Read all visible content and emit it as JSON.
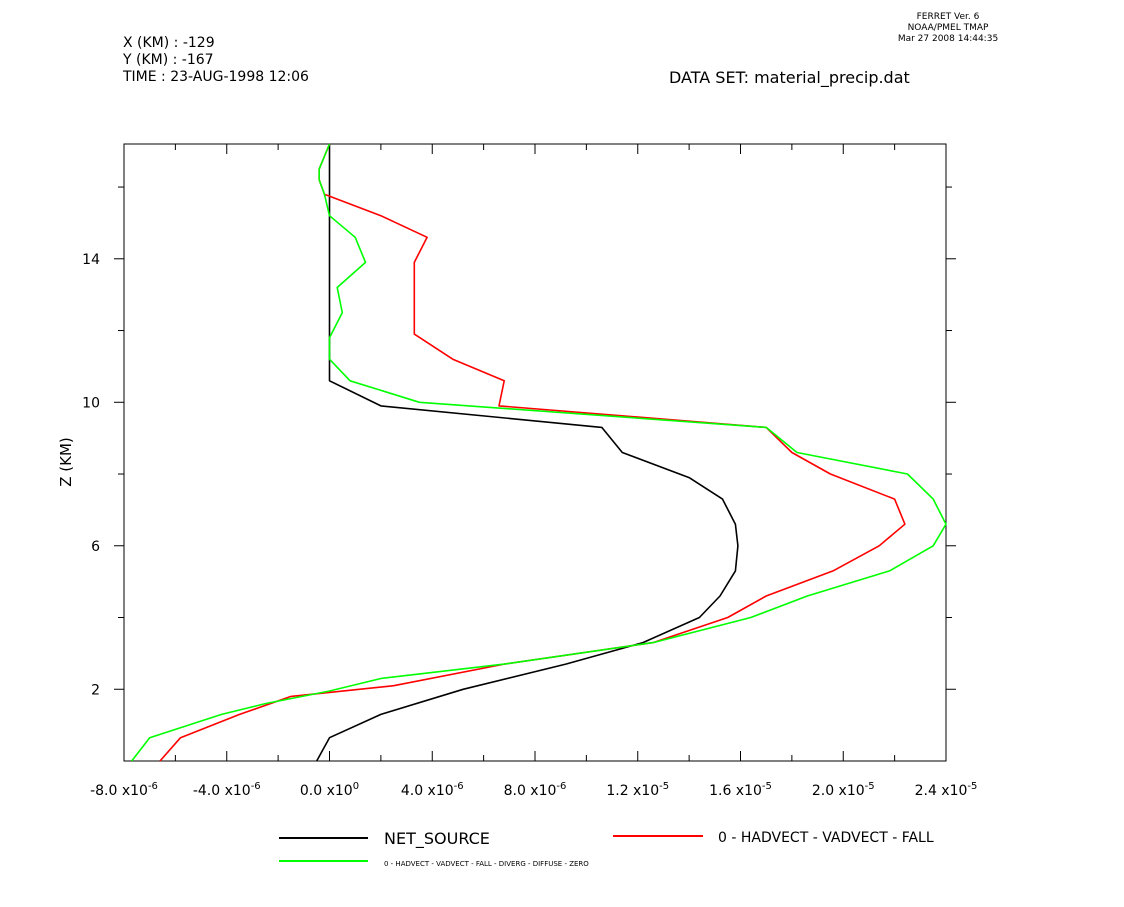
{
  "header": {
    "x_line": "X (KM) : -129",
    "y_line": "Y (KM) : -167",
    "time_line": "TIME : 23-AUG-1998 12:06",
    "dataset_line": "DATA SET: material_precip.dat",
    "ferret_version": "FERRET Ver. 6",
    "ferret_org": "NOAA/PMEL TMAP",
    "ferret_date": "Mar 27 2008 14:44:35"
  },
  "chart_data": {
    "type": "line",
    "title": "",
    "xlabel": "",
    "ylabel": "Z (KM)",
    "xlim": [
      -8e-06,
      2.4e-05
    ],
    "ylim": [
      0.0,
      17.2
    ],
    "x_ticks": [
      {
        "value": -8e-06,
        "mant": "-8.0",
        "exp": "-6"
      },
      {
        "value": -4e-06,
        "mant": "-4.0",
        "exp": "-6"
      },
      {
        "value": 0.0,
        "mant": "0.0",
        "exp": "0"
      },
      {
        "value": 4e-06,
        "mant": "4.0",
        "exp": "-6"
      },
      {
        "value": 8e-06,
        "mant": "8.0",
        "exp": "-6"
      },
      {
        "value": 1.2e-05,
        "mant": "1.2",
        "exp": "-5"
      },
      {
        "value": 1.6e-05,
        "mant": "1.6",
        "exp": "-5"
      },
      {
        "value": 2e-05,
        "mant": "2.0",
        "exp": "-5"
      },
      {
        "value": 2.4e-05,
        "mant": "2.4",
        "exp": "-5"
      }
    ],
    "x_minor_ticks": [
      -6e-06,
      -2e-06,
      2e-06,
      6e-06,
      1e-05,
      1.4e-05,
      1.8e-05,
      2.2e-05
    ],
    "y_ticks": [
      2,
      6,
      10,
      14
    ],
    "y_minor_ticks": [
      4,
      8,
      12,
      16
    ],
    "grid": false,
    "legend_position": "bottom",
    "series": [
      {
        "name": "NET_SOURCE",
        "color": "#000000",
        "points": [
          [
            0.0,
            17.2
          ],
          [
            0.0,
            16.5
          ],
          [
            0.0,
            15.8
          ],
          [
            0.0,
            15.1
          ],
          [
            0.0,
            14.4
          ],
          [
            0.0,
            13.8
          ],
          [
            0.0,
            13.1
          ],
          [
            0.0,
            12.4
          ],
          [
            0.0,
            11.8
          ],
          [
            0.0,
            11.2
          ],
          [
            0.0,
            10.6
          ],
          [
            2e-06,
            9.9
          ],
          [
            1.06e-05,
            9.3
          ],
          [
            1.14e-05,
            8.6
          ],
          [
            1.4e-05,
            7.9
          ],
          [
            1.53e-05,
            7.3
          ],
          [
            1.58e-05,
            6.6
          ],
          [
            1.59e-05,
            6.0
          ],
          [
            1.58e-05,
            5.3
          ],
          [
            1.52e-05,
            4.6
          ],
          [
            1.44e-05,
            4.0
          ],
          [
            1.22e-05,
            3.3
          ],
          [
            9.2e-06,
            2.7
          ],
          [
            5.2e-06,
            2.0
          ],
          [
            2e-06,
            1.3
          ],
          [
            0.0,
            0.65
          ],
          [
            -5e-07,
            0.0
          ]
        ]
      },
      {
        "name": "0 - HADVECT - VADVECT - FALL",
        "color": "#ff0000",
        "points": [
          [
            0.0,
            17.2
          ],
          [
            -4e-07,
            16.5
          ],
          [
            -4e-07,
            16.2
          ],
          [
            -2e-07,
            15.8
          ],
          [
            2e-06,
            15.2
          ],
          [
            3.8e-06,
            14.6
          ],
          [
            3.3e-06,
            13.9
          ],
          [
            3.3e-06,
            12.4
          ],
          [
            3.3e-06,
            11.9
          ],
          [
            4.8e-06,
            11.2
          ],
          [
            6.8e-06,
            10.6
          ],
          [
            6.6e-06,
            9.9
          ],
          [
            1.7e-05,
            9.3
          ],
          [
            1.8e-05,
            8.6
          ],
          [
            1.95e-05,
            8.0
          ],
          [
            2.2e-05,
            7.3
          ],
          [
            2.24e-05,
            6.6
          ],
          [
            2.14e-05,
            6.0
          ],
          [
            1.96e-05,
            5.3
          ],
          [
            1.7e-05,
            4.6
          ],
          [
            1.55e-05,
            4.0
          ],
          [
            1.26e-05,
            3.3
          ],
          [
            6.8e-06,
            2.7
          ],
          [
            2.5e-06,
            2.1
          ],
          [
            -1.5e-06,
            1.8
          ],
          [
            -3.5e-06,
            1.3
          ],
          [
            -5.8e-06,
            0.65
          ],
          [
            -6.6e-06,
            0.0
          ]
        ]
      },
      {
        "name": "0 - HADVECT - VADVECT - FALL - DIVERG - DIFFUSE - ZERO",
        "color": "#00ff00",
        "points": [
          [
            0.0,
            17.2
          ],
          [
            -4e-07,
            16.5
          ],
          [
            -4e-07,
            16.2
          ],
          [
            -2e-07,
            15.8
          ],
          [
            0.0,
            15.2
          ],
          [
            1e-06,
            14.6
          ],
          [
            1.4e-06,
            13.9
          ],
          [
            3e-07,
            13.2
          ],
          [
            5e-07,
            12.5
          ],
          [
            0.0,
            11.8
          ],
          [
            0.0,
            11.2
          ],
          [
            8e-07,
            10.6
          ],
          [
            3.5e-06,
            10.0
          ],
          [
            1.7e-05,
            9.3
          ],
          [
            1.82e-05,
            8.6
          ],
          [
            2.25e-05,
            8.0
          ],
          [
            2.35e-05,
            7.3
          ],
          [
            2.4e-05,
            6.6
          ],
          [
            2.35e-05,
            6.0
          ],
          [
            2.18e-05,
            5.3
          ],
          [
            1.86e-05,
            4.6
          ],
          [
            1.64e-05,
            4.0
          ],
          [
            1.26e-05,
            3.3
          ],
          [
            6.8e-06,
            2.7
          ],
          [
            2e-06,
            2.3
          ],
          [
            0.0,
            1.95
          ],
          [
            -2.5e-06,
            1.6
          ],
          [
            -4.2e-06,
            1.3
          ],
          [
            -7e-06,
            0.65
          ],
          [
            -7.7e-06,
            0.0
          ]
        ]
      }
    ]
  }
}
